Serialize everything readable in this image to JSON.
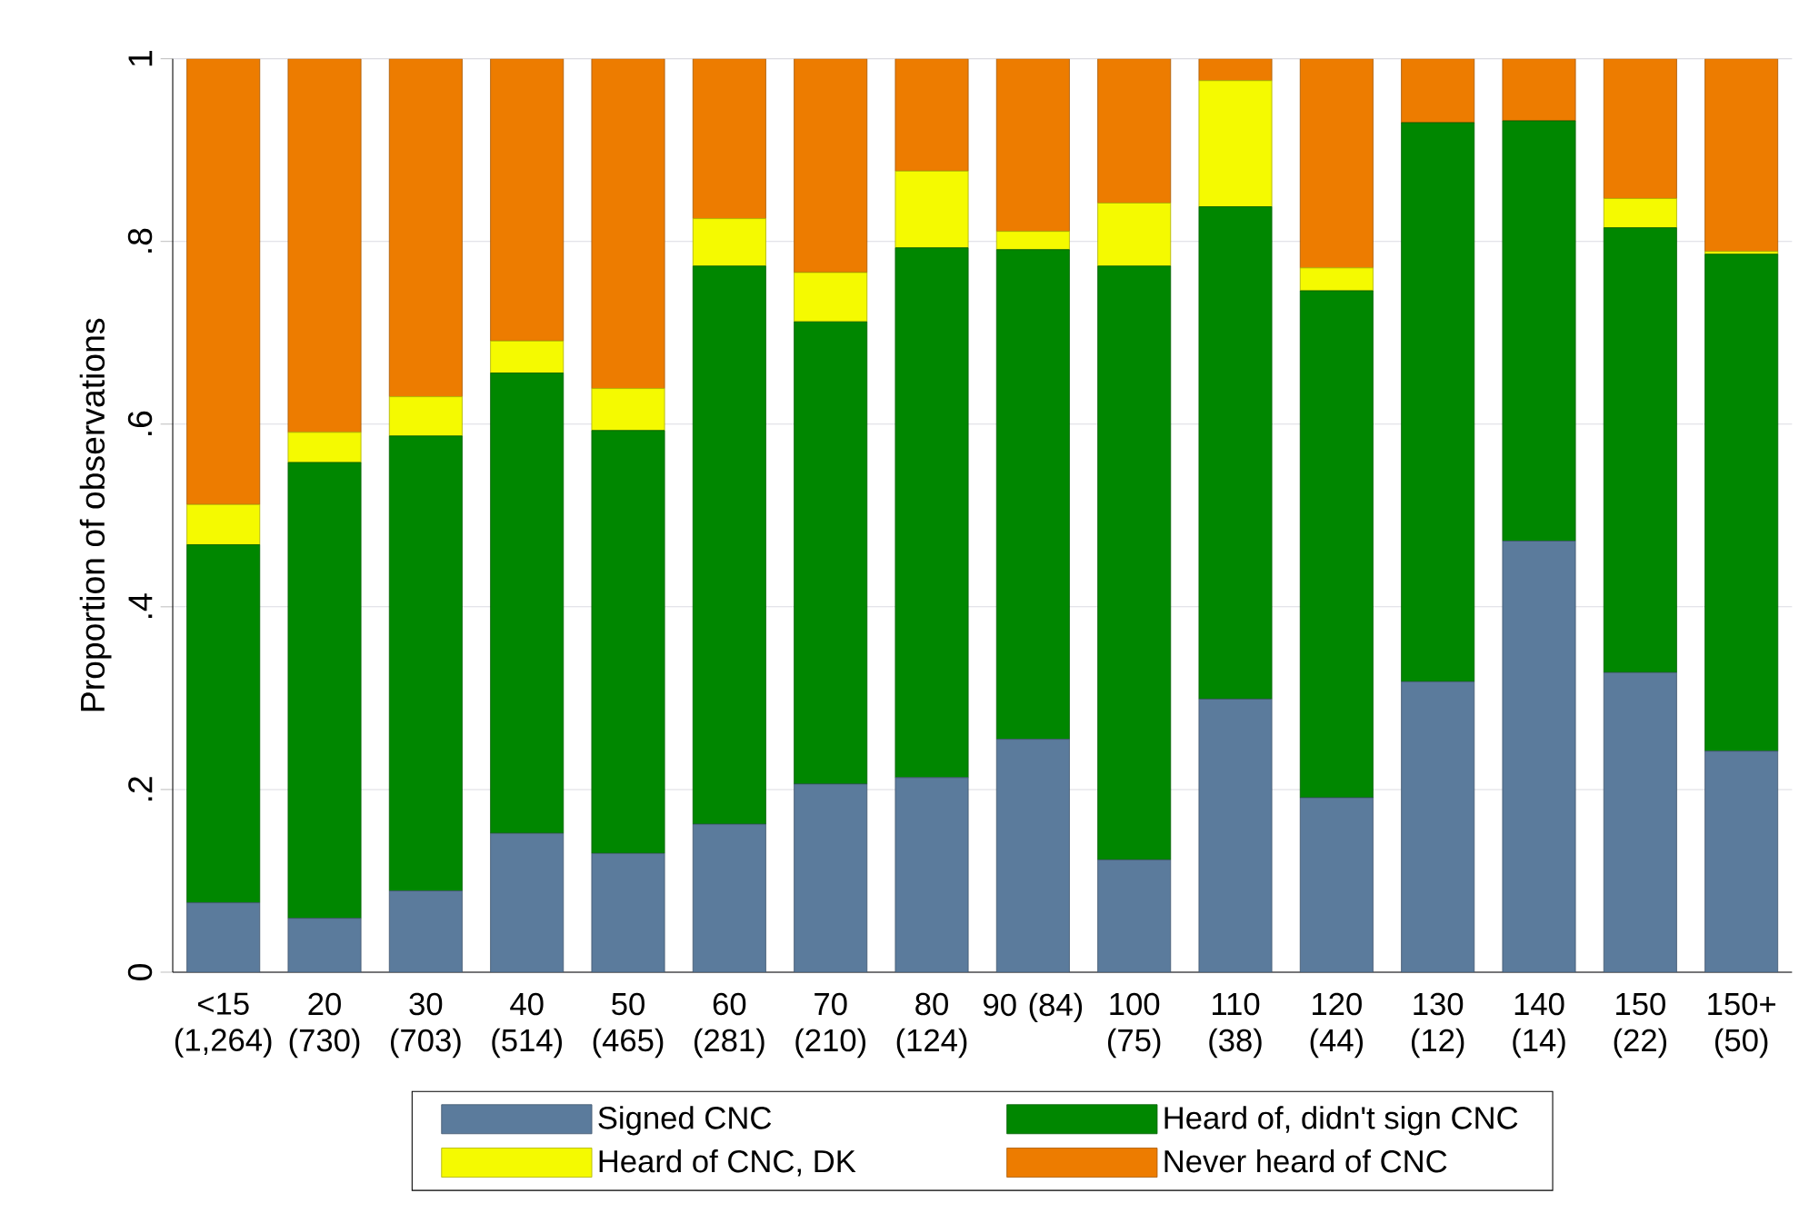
{
  "chart_data": {
    "type": "bar",
    "stacked": true,
    "ylabel": "Proportion of observations",
    "categories": [
      "<15 (1,264)",
      "20 (730)",
      "30 (703)",
      "40 (514)",
      "50 (465)",
      "60 (281)",
      "70 (210)",
      "80 (124)",
      "90 (84)",
      "100 (75)",
      "110 (38)",
      "120 (44)",
      "130 (12)",
      "140 (14)",
      "150 (22)",
      "150+ (50)"
    ],
    "series": [
      {
        "name": "Signed CNC",
        "color": "#5b7b9c",
        "values": [
          0.076,
          0.059,
          0.089,
          0.152,
          0.13,
          0.162,
          0.206,
          0.213,
          0.255,
          0.123,
          0.299,
          0.191,
          0.318,
          0.472,
          0.328,
          0.242
        ]
      },
      {
        "name": "Heard of, didn't sign CNC",
        "color": "#008700",
        "values": [
          0.392,
          0.499,
          0.498,
          0.504,
          0.463,
          0.611,
          0.506,
          0.58,
          0.536,
          0.65,
          0.539,
          0.555,
          0.612,
          0.46,
          0.487,
          0.544
        ]
      },
      {
        "name": "Heard of CNC, DK",
        "color": "#f5fa00",
        "values": [
          0.044,
          0.033,
          0.043,
          0.035,
          0.046,
          0.052,
          0.054,
          0.084,
          0.02,
          0.069,
          0.138,
          0.025,
          0,
          0,
          0.032,
          0.003
        ]
      },
      {
        "name": "Never heard of CNC",
        "color": "#ed7c00",
        "values": [
          0.488,
          0.409,
          0.37,
          0.309,
          0.361,
          0.175,
          0.234,
          0.123,
          0.189,
          0.158,
          0.024,
          0.229,
          0.07,
          0.068,
          0.153,
          0.211
        ]
      }
    ],
    "ylim": [
      0,
      1
    ],
    "yticks": [
      0,
      {
        "value": 0.2,
        "label": ".2"
      },
      {
        "value": 0.4,
        "label": ".4"
      },
      {
        "value": 0.6,
        "label": ".6"
      },
      {
        "value": 0.8,
        "label": ".8"
      },
      1
    ],
    "grid": "y",
    "legend": "bottom"
  }
}
